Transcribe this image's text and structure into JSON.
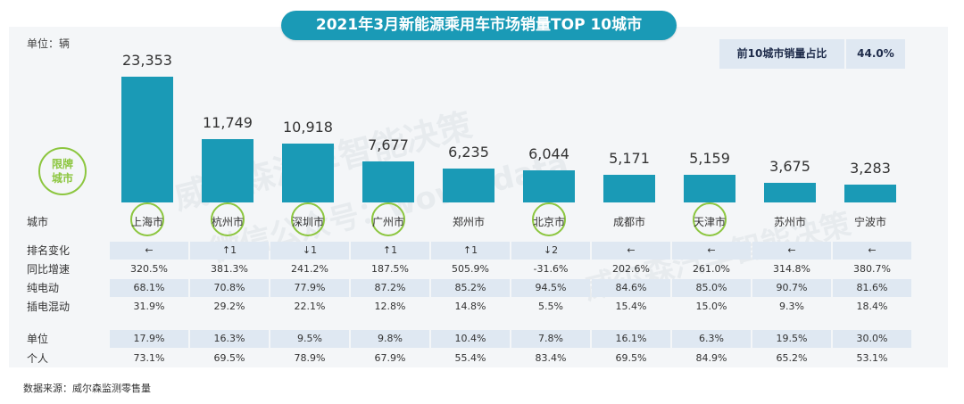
{
  "title": "2021年3月新能源乘用车市场销量TOP 10城市",
  "unit": "单位：辆",
  "share_box": {
    "label": "前10城市销量占比",
    "value": "44.0%"
  },
  "badge": {
    "line1": "限牌",
    "line2": "城市"
  },
  "city_row_label": "城市",
  "footnote": "数据来源：威尔森监测零售量",
  "watermarks": [
    "威尔森汽车智能决策",
    "微信公众号：wows-data"
  ],
  "chart_data": {
    "type": "bar",
    "title": "2021年3月新能源乘用车市场销量TOP 10城市",
    "ylabel": "单位：辆",
    "ylim": [
      0,
      25000
    ],
    "categories": [
      "上海市",
      "杭州市",
      "深圳市",
      "广州市",
      "郑州市",
      "北京市",
      "成都市",
      "天津市",
      "苏州市",
      "宁波市"
    ],
    "values": [
      23353,
      11749,
      10918,
      7677,
      6235,
      6044,
      5171,
      5159,
      3675,
      3283
    ],
    "value_labels": [
      "23,353",
      "11,749",
      "10,918",
      "7,677",
      "6,235",
      "6,044",
      "5,171",
      "5,159",
      "3,675",
      "3,283"
    ],
    "restricted_city": [
      true,
      true,
      true,
      true,
      false,
      true,
      false,
      true,
      false,
      false
    ]
  },
  "table": {
    "rows": [
      {
        "label": "排名变化",
        "values": [
          "←",
          "↑1",
          "↓1",
          "↑1",
          "↑1",
          "↓2",
          "←",
          "←",
          "←",
          "←"
        ]
      },
      {
        "label": "同比增速",
        "values": [
          "320.5%",
          "381.3%",
          "241.2%",
          "187.5%",
          "505.9%",
          "-31.6%",
          "202.6%",
          "261.0%",
          "314.8%",
          "380.7%"
        ]
      },
      {
        "label": "纯电动",
        "values": [
          "68.1%",
          "70.8%",
          "77.9%",
          "87.2%",
          "85.2%",
          "94.5%",
          "84.6%",
          "85.0%",
          "90.7%",
          "81.6%"
        ]
      },
      {
        "label": "插电混动",
        "values": [
          "31.9%",
          "29.2%",
          "22.1%",
          "12.8%",
          "14.8%",
          "5.5%",
          "15.4%",
          "15.0%",
          "9.3%",
          "18.4%"
        ]
      },
      {
        "label": "单位",
        "values": [
          "17.9%",
          "16.3%",
          "9.5%",
          "9.8%",
          "10.4%",
          "7.8%",
          "16.1%",
          "6.3%",
          "19.5%",
          "30.0%"
        ]
      },
      {
        "label": "个人",
        "values": [
          "73.1%",
          "69.5%",
          "78.9%",
          "67.9%",
          "55.4%",
          "83.4%",
          "69.5%",
          "84.9%",
          "65.2%",
          "53.1%"
        ]
      }
    ]
  }
}
